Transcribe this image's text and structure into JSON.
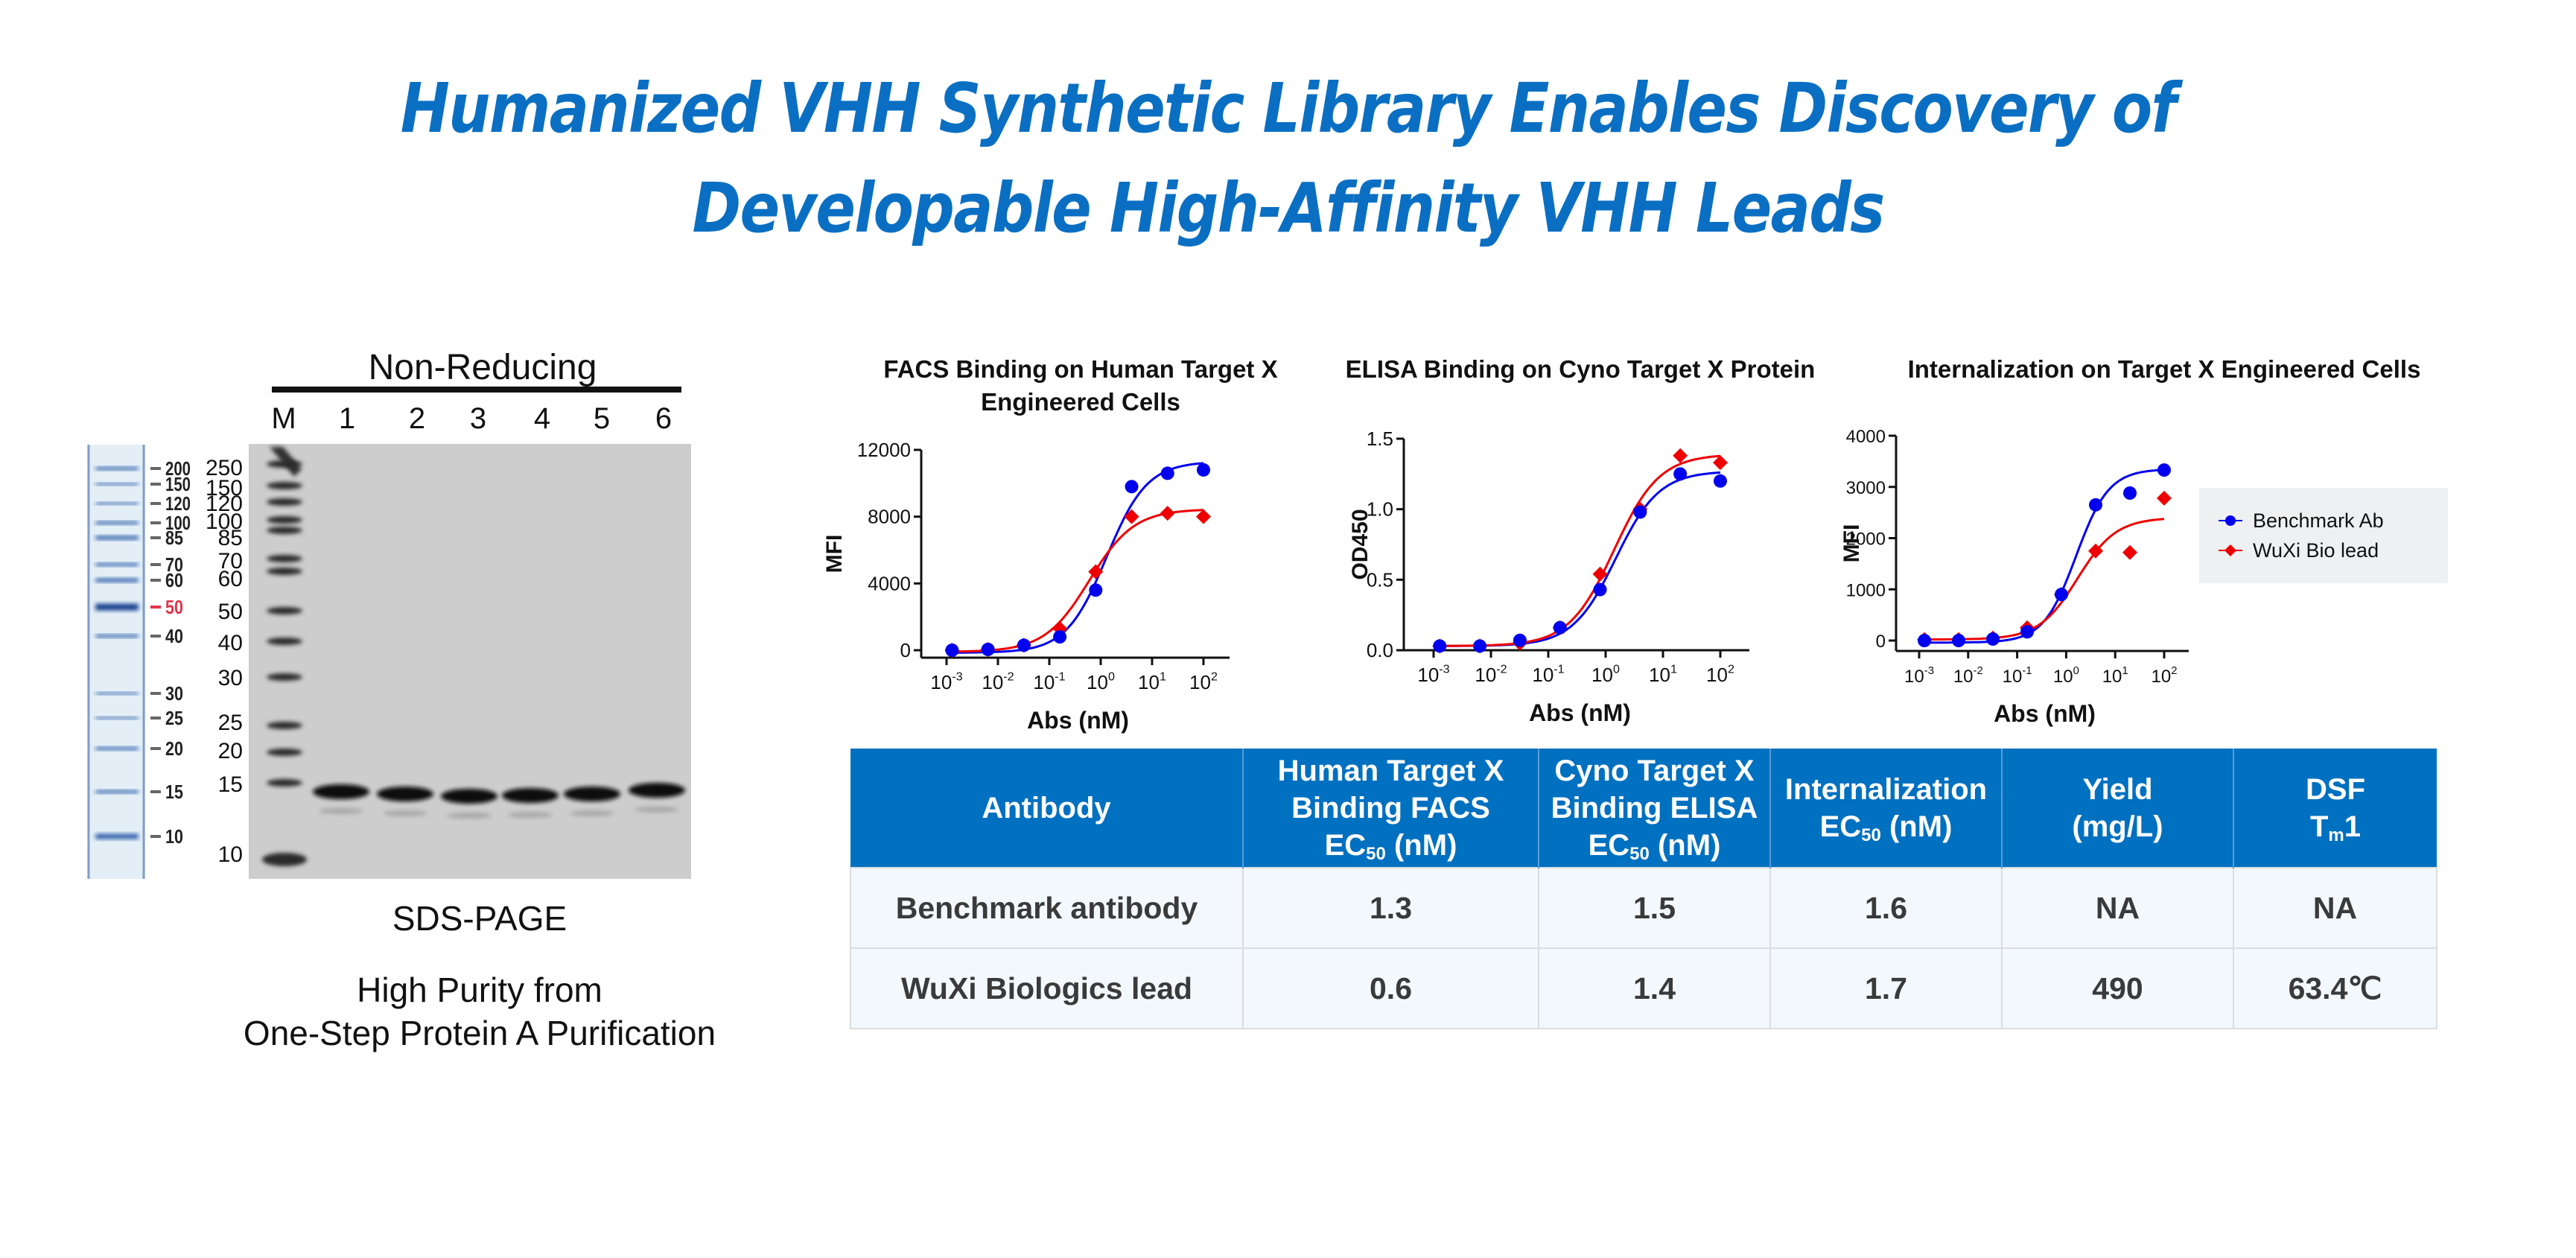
{
  "title": {
    "line1": "Humanized VHH Synthetic Library Enables Discovery of",
    "line2": "Developable High-Affinity VHH Leads",
    "color": "#0A6FC2"
  },
  "gel": {
    "header": "Non-Reducing",
    "lanes": [
      "M",
      "1",
      "2",
      "3",
      "4",
      "5",
      "6"
    ],
    "ladder_labels": [
      "200",
      "150",
      "120",
      "100",
      "85",
      "70",
      "60",
      "50",
      "40",
      "30",
      "25",
      "20",
      "15",
      "10"
    ],
    "ladder_highlight": "50",
    "marker_labels": [
      "250",
      "150",
      "120",
      "100",
      "85",
      "70",
      "60",
      "50",
      "40",
      "30",
      "25",
      "20",
      "15",
      "10"
    ],
    "caption": "SDS-PAGE",
    "subcaption_line1": "High Purity from",
    "subcaption_line2": "One-Step Protein A Purification"
  },
  "legend": {
    "series": [
      {
        "name": "Benchmark Ab",
        "color": "#0000EE",
        "marker": "circle"
      },
      {
        "name": "WuXi Bio lead",
        "color": "#EE0000",
        "marker": "diamond"
      }
    ]
  },
  "chart_data": [
    {
      "type": "scatter",
      "title": "FACS Binding on Human Target X Engineered Cells",
      "title_lines": [
        "FACS Binding on Human Target X",
        "Engineered Cells"
      ],
      "xlabel": "Abs (nM)",
      "ylabel": "MFI",
      "xscale": "log",
      "xlim": [
        0.0005,
        250
      ],
      "ylim": [
        0,
        12000
      ],
      "yticks": [
        0,
        4000,
        8000,
        12000
      ],
      "ytick_labels": [
        "0",
        "4000",
        "8000",
        "12000"
      ],
      "xticks": [
        0.001,
        0.01,
        0.1,
        1,
        10,
        100
      ],
      "xtick_labels": [
        "-3",
        "-2",
        "-1",
        "0",
        "1",
        "2"
      ],
      "x": [
        0.00128,
        0.0064,
        0.032,
        0.16,
        0.8,
        4,
        20,
        100
      ],
      "series": [
        {
          "name": "Benchmark Ab",
          "values": [
            0,
            50,
            300,
            800,
            3600,
            9800,
            10600,
            10800
          ],
          "fit": {
            "bottom": -150,
            "top": 11300,
            "ec50": 1.3,
            "hill": 1.1
          }
        },
        {
          "name": "WuXi Bio lead",
          "values": [
            0,
            50,
            300,
            1300,
            4700,
            8000,
            8200,
            8000
          ],
          "fit": {
            "bottom": -100,
            "top": 8450,
            "ec50": 0.6,
            "hill": 1.0
          }
        }
      ]
    },
    {
      "type": "scatter",
      "title": "ELISA Binding on Cyno Target X Protein",
      "title_lines": [
        "ELISA Binding on Cyno Target X Protein"
      ],
      "xlabel": "Abs (nM)",
      "ylabel": "OD450",
      "xscale": "log",
      "xlim": [
        0.0005,
        250
      ],
      "ylim": [
        0,
        1.5
      ],
      "yticks": [
        0,
        0.5,
        1.0,
        1.5
      ],
      "ytick_labels": [
        "0.0",
        "0.5",
        "1.0",
        "1.5"
      ],
      "xticks": [
        0.001,
        0.01,
        0.1,
        1,
        10,
        100
      ],
      "xtick_labels": [
        "-3",
        "-2",
        "-1",
        "0",
        "1",
        "2"
      ],
      "x": [
        0.00128,
        0.0064,
        0.032,
        0.16,
        0.8,
        4,
        20,
        100
      ],
      "series": [
        {
          "name": "Benchmark Ab",
          "values": [
            0.03,
            0.03,
            0.07,
            0.16,
            0.43,
            0.98,
            1.25,
            1.2
          ],
          "fit": {
            "bottom": 0.03,
            "top": 1.27,
            "ec50": 1.5,
            "hill": 1.15
          }
        },
        {
          "name": "WuXi Bio lead",
          "values": [
            0.03,
            0.03,
            0.05,
            0.16,
            0.54,
            1.0,
            1.38,
            1.33
          ],
          "fit": {
            "bottom": 0.03,
            "top": 1.39,
            "ec50": 1.4,
            "hill": 1.1
          }
        }
      ]
    },
    {
      "type": "scatter",
      "title": "Internalization on Target X Engineered Cells",
      "title_lines": [
        "Internalization on Target X Engineered Cells"
      ],
      "xlabel": "Abs (nM)",
      "ylabel": "MFI",
      "xscale": "log",
      "xlim": [
        0.0005,
        250
      ],
      "ylim": [
        0,
        4000
      ],
      "yticks": [
        0,
        1000,
        2000,
        3000,
        4000
      ],
      "ytick_labels": [
        "0",
        "1000",
        "2000",
        "3000",
        "4000"
      ],
      "xticks": [
        0.001,
        0.01,
        0.1,
        1,
        10,
        100
      ],
      "xtick_labels": [
        "-3",
        "-2",
        "-1",
        "0",
        "1",
        "2"
      ],
      "x": [
        0.00128,
        0.0064,
        0.032,
        0.16,
        0.8,
        4,
        20,
        100
      ],
      "series": [
        {
          "name": "Benchmark Ab",
          "values": [
            0,
            0,
            30,
            170,
            900,
            2650,
            2880,
            3330
          ],
          "fit": {
            "bottom": -40,
            "top": 3350,
            "ec50": 1.6,
            "hill": 1.3
          }
        },
        {
          "name": "WuXi Bio lead",
          "values": [
            20,
            20,
            50,
            250,
            900,
            1750,
            1720,
            2780
          ],
          "fit": {
            "bottom": 20,
            "top": 2400,
            "ec50": 1.7,
            "hill": 1.1
          }
        }
      ],
      "legend_position": "right"
    }
  ],
  "table": {
    "header_color": "#0070C0",
    "columns": [
      {
        "lines": [
          "Antibody"
        ]
      },
      {
        "lines": [
          "Human Target X",
          "Binding FACS"
        ],
        "ec50": true
      },
      {
        "lines": [
          "Cyno Target X",
          "Binding ELISA"
        ],
        "ec50": true
      },
      {
        "lines": [
          "Internalization"
        ],
        "ec50": true
      },
      {
        "lines": [
          "Yield",
          "(mg/L)"
        ]
      },
      {
        "lines": [
          "DSF"
        ],
        "tm": true
      }
    ],
    "ec50_label": {
      "pre": "EC",
      "sub": "50",
      "post": " (nM)"
    },
    "tm_label": {
      "pre": "T",
      "sub": "m",
      "post": "1"
    },
    "rows": [
      [
        "Benchmark antibody",
        "1.3",
        "1.5",
        "1.6",
        "NA",
        "NA"
      ],
      [
        "WuXi Biologics lead",
        "0.6",
        "1.4",
        "1.7",
        "490",
        "63.4℃"
      ]
    ]
  }
}
